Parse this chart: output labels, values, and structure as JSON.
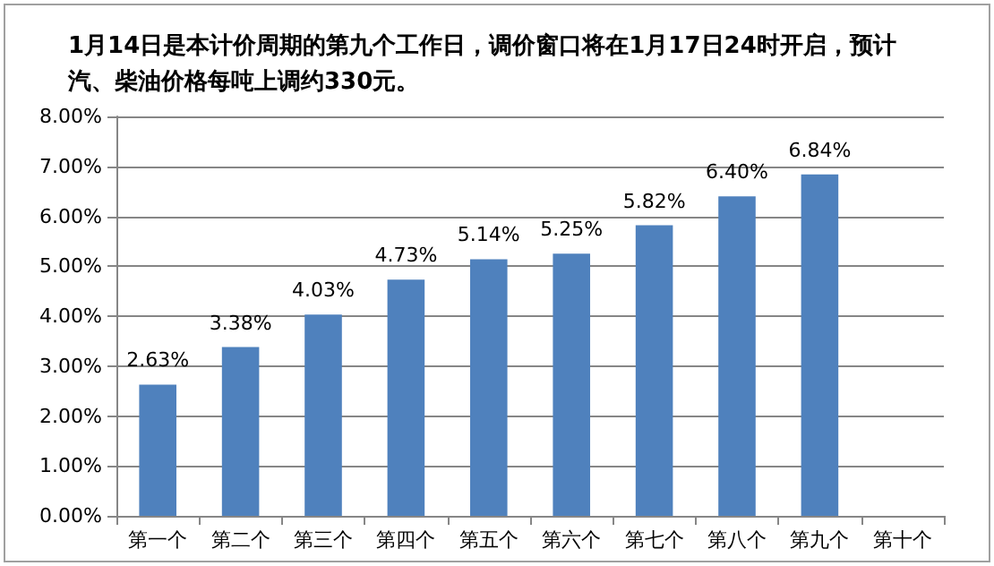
{
  "chart_data": {
    "type": "bar",
    "title": "1月14日是本计价周期的第九个工作日，调价窗口将在1月17日24时开启，预计汽、柴油价格每吨上调约330元。",
    "categories": [
      "第一个",
      "第二个",
      "第三个",
      "第四个",
      "第五个",
      "第六个",
      "第七个",
      "第八个",
      "第九个",
      "第十个"
    ],
    "values": [
      2.63,
      3.38,
      4.03,
      4.73,
      5.14,
      5.25,
      5.82,
      6.4,
      6.84,
      null
    ],
    "value_labels": [
      "2.63%",
      "3.38%",
      "4.03%",
      "4.73%",
      "5.14%",
      "5.25%",
      "5.82%",
      "6.40%",
      "6.84%",
      null
    ],
    "color": "#4f81bd",
    "ylim": [
      0,
      8
    ],
    "yticks": [
      {
        "value": 0,
        "label": "0.00%"
      },
      {
        "value": 1,
        "label": "1.00%"
      },
      {
        "value": 2,
        "label": "2.00%"
      },
      {
        "value": 3,
        "label": "3.00%"
      },
      {
        "value": 4,
        "label": "4.00%"
      },
      {
        "value": 5,
        "label": "5.00%"
      },
      {
        "value": 6,
        "label": "6.00%"
      },
      {
        "value": 7,
        "label": "7.00%"
      },
      {
        "value": 8,
        "label": "8.00%"
      }
    ],
    "grid": "y"
  }
}
